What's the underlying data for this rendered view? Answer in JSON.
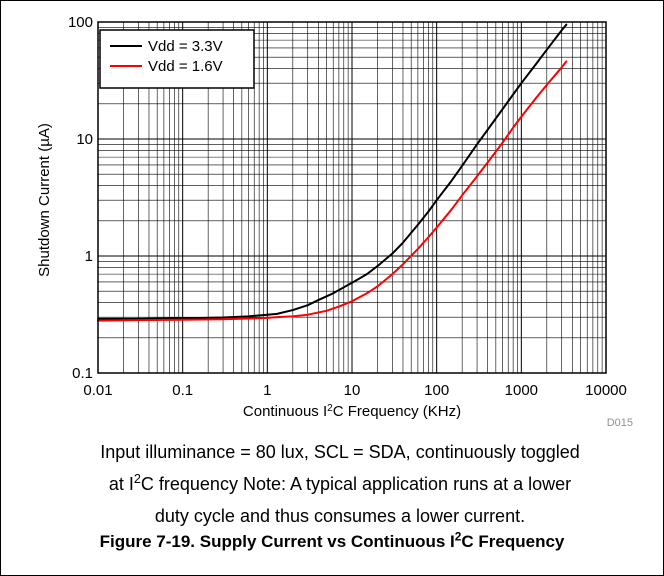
{
  "chart_data": {
    "type": "line",
    "xscale": "log",
    "yscale": "log",
    "xlim": [
      0.01,
      10000
    ],
    "ylim": [
      0.1,
      100
    ],
    "grid": true,
    "legend_position": "top-left",
    "x_ticks": [
      "0.01",
      "0.1",
      "1",
      "10",
      "100",
      "1000",
      "10000"
    ],
    "y_ticks": [
      "0.1",
      "1",
      "10",
      "100"
    ],
    "xlabel": {
      "prefix": "Continuous I",
      "sup": "2",
      "suffix": "C Frequency (KHz)"
    },
    "ylabel": "Shutdown Current (µA)",
    "series": [
      {
        "name": "Vdd = 3.3V",
        "color": "#000000",
        "x": [
          0.01,
          0.03,
          0.1,
          0.3,
          0.6,
          1,
          1.3,
          2,
          3,
          4,
          6,
          8,
          10,
          15,
          20,
          30,
          40,
          60,
          80,
          100,
          150,
          200,
          300,
          400,
          600,
          800,
          1000,
          1500,
          2000,
          3000,
          3400
        ],
        "y": [
          0.29,
          0.29,
          0.293,
          0.298,
          0.305,
          0.315,
          0.32,
          0.345,
          0.38,
          0.42,
          0.48,
          0.54,
          0.59,
          0.7,
          0.82,
          1.05,
          1.3,
          1.85,
          2.4,
          3.0,
          4.4,
          5.9,
          9.0,
          12.0,
          18.0,
          24.0,
          30.0,
          44.0,
          58.0,
          85.0,
          95.0
        ]
      },
      {
        "name": "Vdd = 1.6V",
        "color": "#ff0000",
        "x": [
          0.01,
          0.03,
          0.1,
          0.3,
          0.6,
          1,
          1.3,
          2,
          3,
          5,
          7,
          10,
          15,
          20,
          30,
          40,
          60,
          80,
          100,
          150,
          200,
          300,
          400,
          600,
          800,
          1000,
          1500,
          2000,
          3000,
          3400
        ],
        "y": [
          0.28,
          0.283,
          0.285,
          0.288,
          0.292,
          0.296,
          0.3,
          0.305,
          0.315,
          0.34,
          0.37,
          0.41,
          0.48,
          0.55,
          0.7,
          0.85,
          1.15,
          1.45,
          1.75,
          2.5,
          3.3,
          4.8,
          6.3,
          9.3,
          12.5,
          15.5,
          22.5,
          29.0,
          41.0,
          46.0
        ]
      }
    ]
  },
  "figure_code": "D015",
  "caption_note": {
    "line1": "Input illuminance = 80 lux, SCL = SDA, continuously toggled",
    "line2_prefix": "at I",
    "line2_sup": "2",
    "line2_suffix": "C frequency Note: A typical application runs at a lower",
    "line3": "duty cycle and thus consumes a lower current."
  },
  "figure_title": {
    "prefix": "Figure 7-19. Supply Current vs Continuous I",
    "sup": "2",
    "suffix": "C Frequency"
  }
}
